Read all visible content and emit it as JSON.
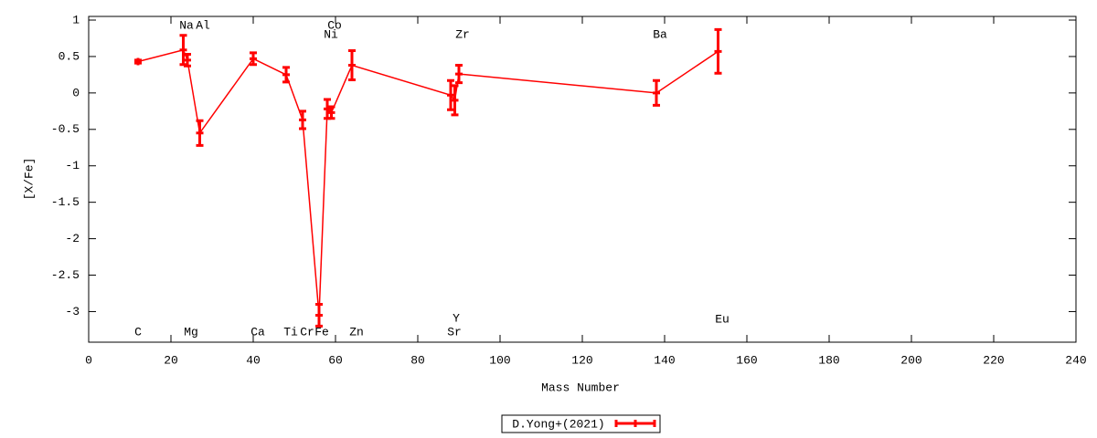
{
  "chart_data": {
    "type": "errorline",
    "x_label": "Mass Number",
    "y_label": "[X/Fe]",
    "xlim": [
      0,
      240
    ],
    "xticks": [
      0,
      20,
      40,
      60,
      80,
      100,
      120,
      140,
      160,
      180,
      200,
      220,
      240
    ],
    "ylim": [
      -3.42,
      1.05
    ],
    "yticks": [
      1,
      0.5,
      0,
      -0.5,
      -1,
      -1.5,
      -2,
      -2.5,
      -3
    ],
    "x": [
      12,
      23,
      24,
      27,
      40,
      48,
      52,
      56,
      58,
      59,
      64,
      88,
      89,
      90,
      138,
      153
    ],
    "labels": [
      "C",
      "Na",
      "Mg",
      "Al",
      "Ca",
      "Ti",
      "Cr",
      "Fe",
      "Ni",
      "Co",
      "Zn",
      "Sr",
      "Y",
      "Zr",
      "Ba",
      "Eu"
    ],
    "series": [
      {
        "name": "D.Yong+(2021)",
        "color": "#ff0000",
        "values": [
          0.43,
          0.59,
          0.45,
          -0.55,
          0.47,
          0.25,
          -0.37,
          -3.05,
          -0.22,
          -0.27,
          0.38,
          -0.03,
          -0.1,
          0.26,
          0.0,
          0.57
        ],
        "errors": [
          0.02,
          0.2,
          0.08,
          0.17,
          0.08,
          0.1,
          0.12,
          0.15,
          0.13,
          0.08,
          0.2,
          0.2,
          0.2,
          0.12,
          0.17,
          0.3
        ]
      }
    ],
    "legend": "bottom-center"
  }
}
